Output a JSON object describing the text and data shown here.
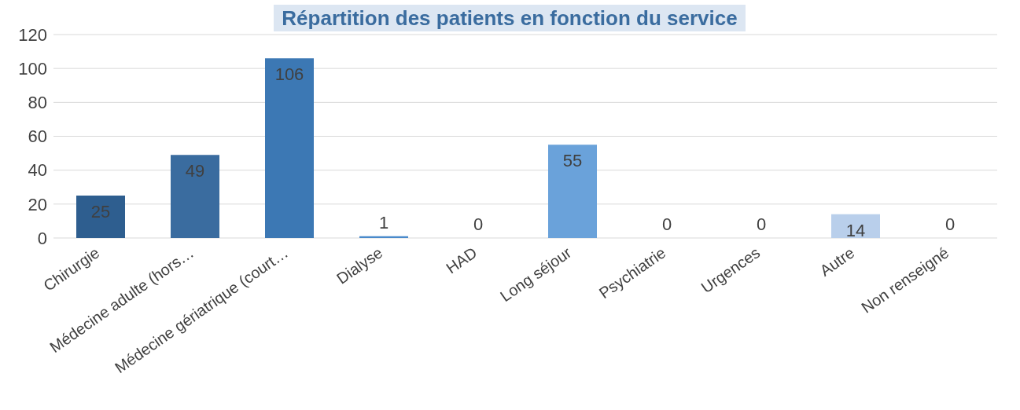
{
  "chart_data": {
    "type": "bar",
    "title": "Répartition des patients en fonction du service",
    "categories": [
      "Chirurgie",
      "Médecine adulte (hors…",
      "Médecine gériatrique (court…",
      "Dialyse",
      "HAD",
      "Long séjour",
      "Psychiatrie",
      "Urgences",
      "Autre",
      "Non renseigné"
    ],
    "values": [
      25,
      49,
      106,
      1,
      0,
      55,
      0,
      0,
      14,
      0
    ],
    "colors": [
      "#2e5e8f",
      "#3a6c9f",
      "#3c78b4",
      "#4a8acb",
      "#5592d0",
      "#6aa2da",
      "#8ab4e0",
      "#a0c0e6",
      "#b9cfeb",
      "#c8d9ef"
    ],
    "ylim": [
      0,
      120
    ],
    "yticks": [
      0,
      20,
      40,
      60,
      80,
      100,
      120
    ],
    "grid": "y",
    "data_labels": true
  }
}
